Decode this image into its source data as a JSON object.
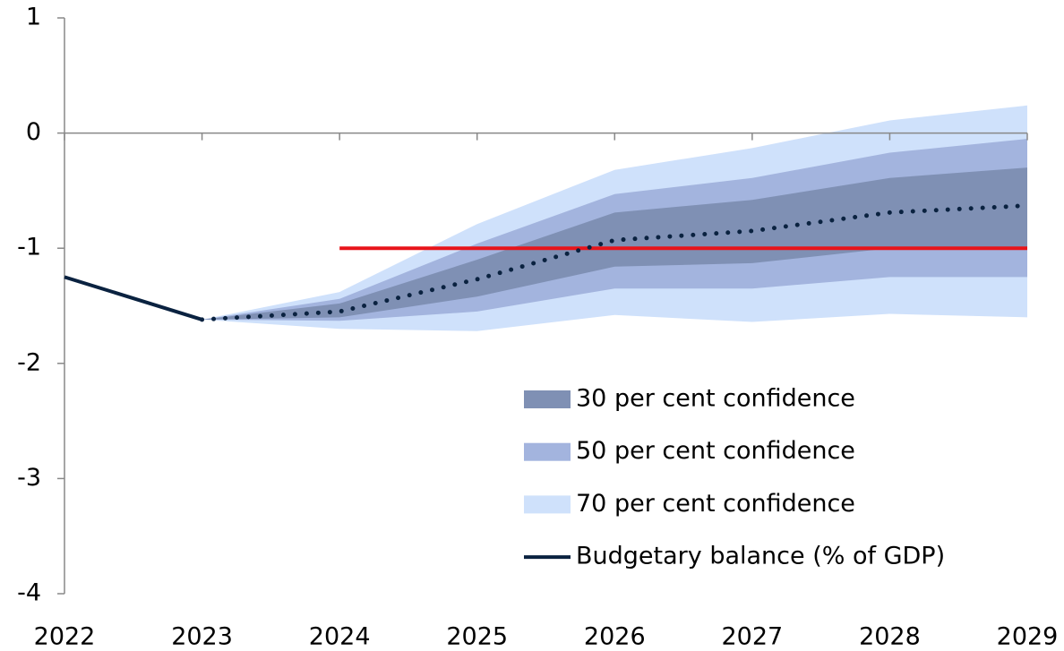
{
  "chart_data": {
    "type": "fan",
    "x": [
      2022,
      2023,
      2024,
      2025,
      2026,
      2027,
      2028,
      2029
    ],
    "xlim": [
      2022,
      2029
    ],
    "xticks": [
      2022,
      2023,
      2024,
      2025,
      2026,
      2027,
      2028,
      2029
    ],
    "ylim": [
      -4,
      1
    ],
    "yticks": [
      -4,
      -3,
      -2,
      -1,
      0,
      1
    ],
    "bands": [
      {
        "name": "30 per cent confidence",
        "color": "#7f90b4",
        "upper": [
          null,
          -1.62,
          -1.48,
          -1.1,
          -0.69,
          -0.58,
          -0.39,
          -0.3
        ],
        "lower": [
          null,
          -1.62,
          -1.6,
          -1.42,
          -1.16,
          -1.13,
          -1.0,
          -1.0
        ]
      },
      {
        "name": "50 per cent confidence",
        "color": "#a3b4de",
        "upper": [
          null,
          -1.62,
          -1.44,
          -0.96,
          -0.53,
          -0.39,
          -0.17,
          -0.05
        ],
        "lower": [
          null,
          -1.62,
          -1.63,
          -1.55,
          -1.35,
          -1.35,
          -1.25,
          -1.25
        ]
      },
      {
        "name": "70 per cent confidence",
        "color": "#cfe1fb",
        "upper": [
          null,
          -1.62,
          -1.38,
          -0.79,
          -0.32,
          -0.13,
          0.11,
          0.24
        ],
        "lower": [
          null,
          -1.62,
          -1.7,
          -1.72,
          -1.58,
          -1.64,
          -1.57,
          -1.6
        ]
      }
    ],
    "series": [
      {
        "name": "Budgetary balance (% of GDP)",
        "color": "#0a2240",
        "values": [
          -1.25,
          -1.62,
          null,
          null,
          null,
          null,
          null,
          null
        ],
        "projection_values": [
          null,
          -1.62,
          -1.55,
          -1.27,
          -0.93,
          -0.85,
          -0.69,
          -0.63
        ]
      }
    ],
    "reference_line": {
      "value": -1,
      "x": [
        2024,
        2029
      ],
      "color": "#e8141a"
    }
  }
}
